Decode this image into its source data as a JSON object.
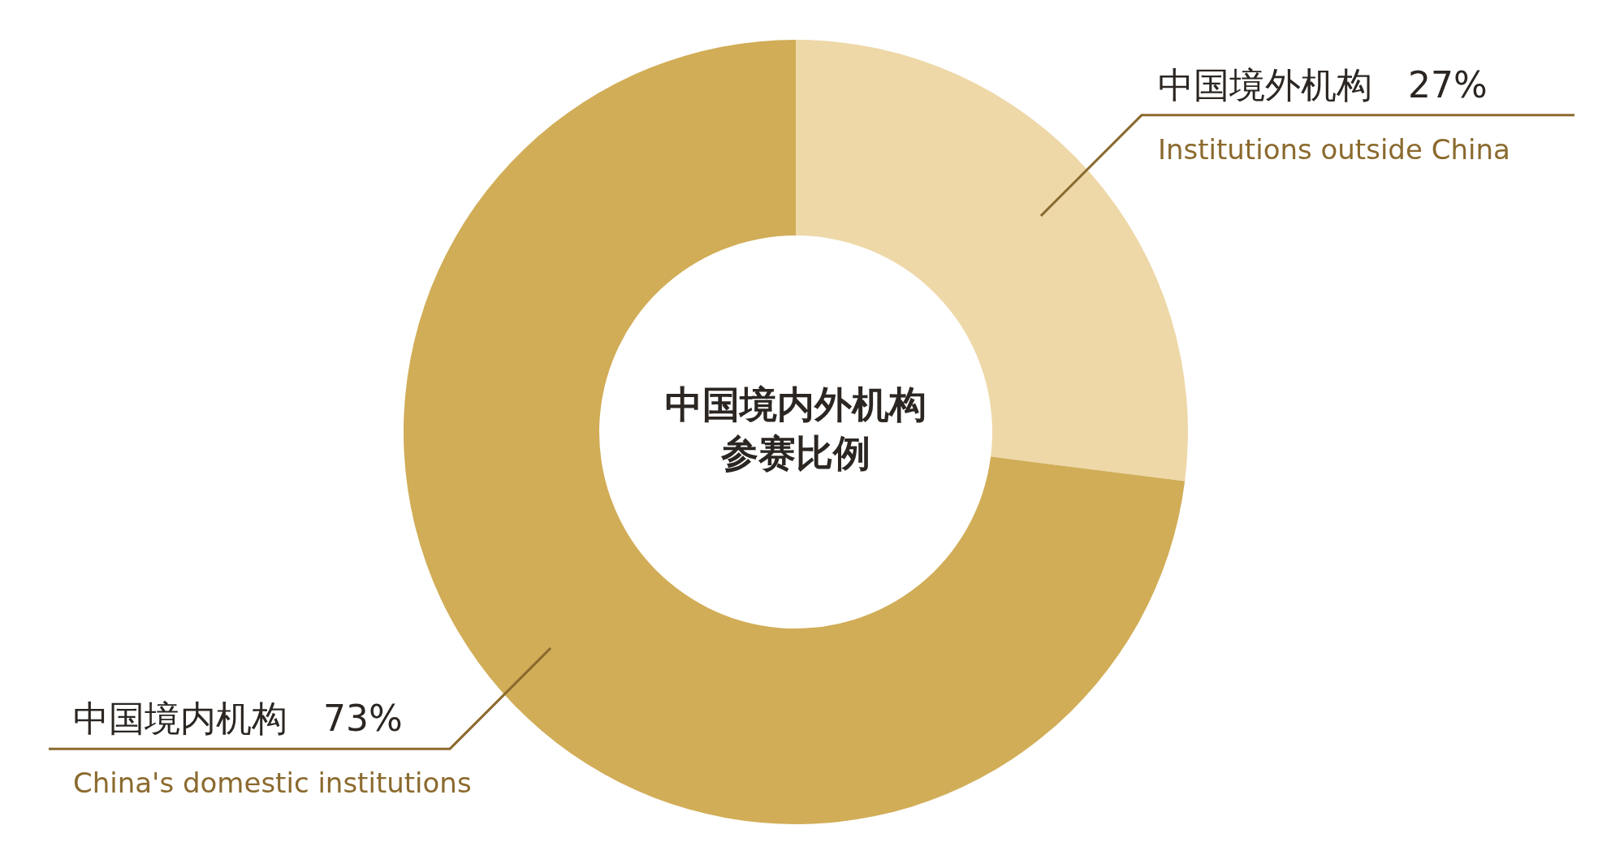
{
  "chart_data": {
    "type": "donut",
    "title": "中国境内外机构参赛比例",
    "categories": [
      "中国境外机构",
      "中国境内机构"
    ],
    "values": [
      27,
      73
    ],
    "colors": [
      "#eed8a8",
      "#d1ad57"
    ],
    "value_labels": [
      "27%",
      "73%"
    ],
    "annotations": [
      "Institutions outside China",
      "China's domestic institutions"
    ]
  }
}
